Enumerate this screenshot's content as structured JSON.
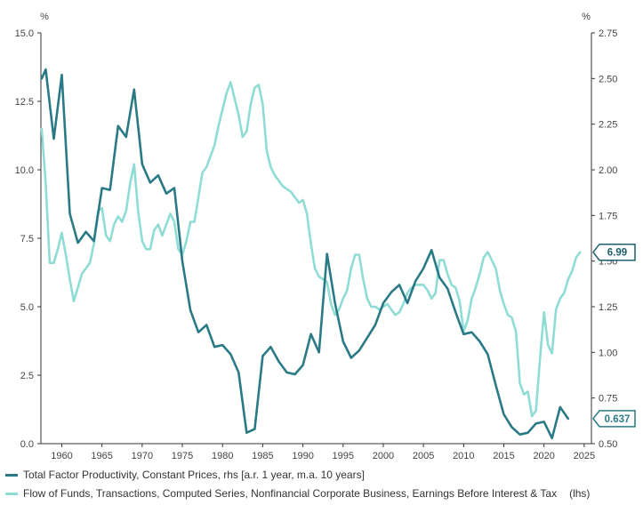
{
  "chart_data": {
    "type": "line",
    "left_axis": {
      "unit_label": "%",
      "ylim": [
        0,
        15
      ],
      "ticks": [
        "0.0",
        "2.5",
        "5.0",
        "7.5",
        "10.0",
        "12.5",
        "15.0"
      ]
    },
    "right_axis": {
      "unit_label": "%",
      "ylim": [
        0.5,
        2.75
      ],
      "ticks": [
        "0.50",
        "0.75",
        "1.00",
        "1.25",
        "1.50",
        "1.75",
        "2.00",
        "2.25",
        "2.50",
        "2.75"
      ]
    },
    "x_axis": {
      "xlim": [
        1957.4,
        2025.9
      ],
      "ticks": [
        "1960",
        "1965",
        "1970",
        "1975",
        "1980",
        "1985",
        "1990",
        "1995",
        "2000",
        "2005",
        "2010",
        "2015",
        "2020",
        "2025"
      ]
    },
    "grid": false,
    "legend_placement": "bottom",
    "series": [
      {
        "name": "Total Factor Productivity, Constant Prices, rhs [a.r. 1 year, m.a. 10 years]",
        "axis": "right",
        "color": "#2a7a86",
        "end_label": "0.637",
        "x": [
          1957.5,
          1958,
          1959,
          1960,
          1961,
          1962,
          1963,
          1964,
          1965,
          1966,
          1967,
          1968,
          1969,
          1970,
          1971,
          1972,
          1973,
          1974,
          1975,
          1976,
          1977,
          1978,
          1979,
          1980,
          1981,
          1982,
          1983,
          1984,
          1985,
          1986,
          1987,
          1988,
          1989,
          1990,
          1991,
          1992,
          1993,
          1994,
          1995,
          1996,
          1997,
          1998,
          1999,
          2000,
          2001,
          2002,
          2003,
          2004,
          2005,
          2006,
          2007,
          2008,
          2009,
          2010,
          2011,
          2012,
          2013,
          2014,
          2015,
          2016,
          2017,
          2018,
          2019,
          2020,
          2021,
          2022,
          2023
        ],
        "values": [
          2.5,
          2.55,
          2.17,
          2.52,
          1.76,
          1.6,
          1.66,
          1.61,
          1.9,
          1.89,
          2.24,
          2.18,
          2.44,
          2.03,
          1.93,
          1.97,
          1.87,
          1.9,
          1.5,
          1.23,
          1.11,
          1.15,
          1.03,
          1.04,
          0.99,
          0.89,
          0.56,
          0.58,
          0.98,
          1.03,
          0.95,
          0.89,
          0.88,
          0.93,
          1.1,
          1.0,
          1.54,
          1.27,
          1.06,
          0.97,
          1.01,
          1.08,
          1.15,
          1.27,
          1.33,
          1.37,
          1.27,
          1.39,
          1.46,
          1.56,
          1.41,
          1.35,
          1.22,
          1.1,
          1.11,
          1.06,
          0.99,
          0.82,
          0.66,
          0.59,
          0.55,
          0.56,
          0.61,
          0.62,
          0.53,
          0.7,
          0.637
        ]
      },
      {
        "name": "Flow of Funds, Transactions, Computed Series, Nonfinancial Corporate Business, Earnings Before Interest & Tax",
        "axis_note": "(lhs)",
        "axis": "left",
        "color": "#8fdcd4",
        "end_label": "6.99",
        "x": [
          1957.5,
          1958,
          1958.5,
          1959,
          1959.5,
          1960,
          1960.5,
          1961,
          1961.5,
          1962,
          1962.5,
          1963,
          1963.5,
          1964,
          1964.5,
          1965,
          1965.5,
          1966,
          1966.5,
          1967,
          1967.5,
          1968,
          1968.5,
          1969,
          1969.5,
          1970,
          1970.5,
          1971,
          1971.5,
          1972,
          1972.5,
          1973,
          1973.5,
          1974,
          1974.5,
          1975,
          1975.5,
          1976,
          1976.5,
          1977,
          1977.5,
          1978,
          1978.5,
          1979,
          1979.5,
          1980,
          1980.5,
          1981,
          1981.5,
          1982,
          1982.5,
          1983,
          1983.5,
          1984,
          1984.5,
          1985,
          1985.5,
          1986,
          1986.5,
          1987,
          1987.5,
          1988,
          1988.5,
          1989,
          1989.5,
          1990,
          1990.5,
          1991,
          1991.5,
          1992,
          1992.5,
          1993,
          1993.5,
          1994,
          1994.5,
          1995,
          1995.5,
          1996,
          1996.5,
          1997,
          1997.5,
          1998,
          1998.5,
          1999,
          1999.5,
          2000,
          2000.5,
          2001,
          2001.5,
          2002,
          2002.5,
          2003,
          2003.5,
          2004,
          2004.5,
          2005,
          2005.5,
          2006,
          2006.5,
          2007,
          2007.5,
          2008,
          2008.5,
          2009,
          2009.5,
          2010,
          2010.5,
          2011,
          2011.5,
          2012,
          2012.5,
          2013,
          2013.5,
          2014,
          2014.5,
          2015,
          2015.5,
          2016,
          2016.5,
          2017,
          2017.5,
          2018,
          2018.5,
          2019,
          2019.5,
          2020,
          2020.5,
          2021,
          2021.5,
          2022,
          2022.5,
          2023,
          2023.5,
          2024,
          2024.5
        ],
        "values": [
          11.5,
          9.5,
          6.6,
          6.6,
          7.1,
          7.7,
          6.9,
          6.0,
          5.2,
          5.7,
          6.2,
          6.4,
          6.6,
          7.3,
          8.5,
          8.6,
          7.6,
          7.4,
          8.0,
          8.3,
          8.1,
          8.5,
          9.5,
          10.2,
          8.5,
          7.4,
          7.1,
          7.1,
          7.8,
          8.0,
          7.6,
          8.0,
          8.4,
          8.1,
          7.1,
          6.9,
          7.4,
          8.1,
          8.1,
          9.0,
          9.9,
          10.1,
          10.5,
          10.9,
          11.6,
          12.2,
          12.8,
          13.2,
          12.6,
          12.0,
          11.2,
          11.4,
          12.4,
          13.0,
          13.1,
          12.4,
          10.7,
          10.1,
          9.8,
          9.6,
          9.4,
          9.3,
          9.2,
          9.0,
          8.8,
          8.9,
          8.4,
          7.3,
          6.4,
          6.1,
          6.0,
          5.9,
          5.1,
          4.7,
          4.9,
          5.3,
          5.6,
          6.4,
          6.9,
          6.9,
          6.0,
          5.3,
          5.0,
          5.0,
          4.9,
          5.0,
          5.1,
          4.9,
          4.7,
          4.8,
          5.1,
          5.5,
          5.7,
          5.8,
          5.8,
          5.8,
          5.6,
          5.3,
          5.5,
          6.7,
          6.7,
          6.2,
          5.8,
          5.7,
          5.2,
          4.1,
          4.5,
          5.3,
          5.7,
          6.2,
          6.8,
          7.0,
          6.7,
          6.4,
          5.6,
          5.1,
          4.7,
          4.6,
          4.1,
          2.2,
          1.8,
          1.9,
          1.0,
          1.2,
          3.1,
          4.8,
          3.6,
          3.3,
          4.9,
          5.3,
          5.5,
          6.0,
          6.3,
          6.8,
          6.99
        ]
      }
    ]
  }
}
